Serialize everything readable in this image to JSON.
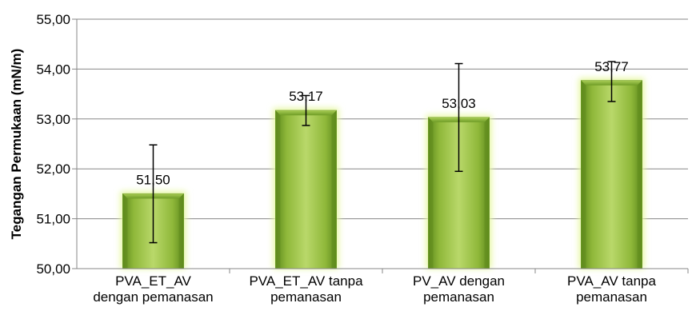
{
  "chart_data": {
    "type": "bar",
    "title": "",
    "xlabel": "",
    "ylabel": "Tegangan Permukaan (mN/m)",
    "ylim": [
      50,
      55
    ],
    "yticks": [
      "50,00",
      "51,00",
      "52,00",
      "53,00",
      "54,00",
      "55,00"
    ],
    "grid": true,
    "legend": "none",
    "categories": [
      [
        "PVA_ET_AV",
        "dengan pemanasan"
      ],
      [
        "PVA_ET_AV tanpa",
        "pemanasan"
      ],
      [
        "PV_AV dengan",
        "pemanasan"
      ],
      [
        "PVA_AV tanpa",
        "pemanasan"
      ]
    ],
    "values": [
      51.5,
      53.17,
      53.03,
      53.77
    ],
    "data_labels": [
      "51,50",
      "53,17",
      "53,03",
      "53,77"
    ],
    "error_bars": [
      {
        "low": 50.52,
        "high": 52.48
      },
      {
        "low": 52.87,
        "high": 53.47
      },
      {
        "low": 51.95,
        "high": 54.11
      },
      {
        "low": 53.35,
        "high": 54.15
      }
    ],
    "colors": {
      "bar_fill": "#8fb83a",
      "bar_light": "#d8eba0",
      "bar_dark": "#5e8a1c",
      "bar_glow": "#e6f7a3",
      "grid": "#878787",
      "axis": "#878787",
      "error_bar": "#000000"
    }
  }
}
